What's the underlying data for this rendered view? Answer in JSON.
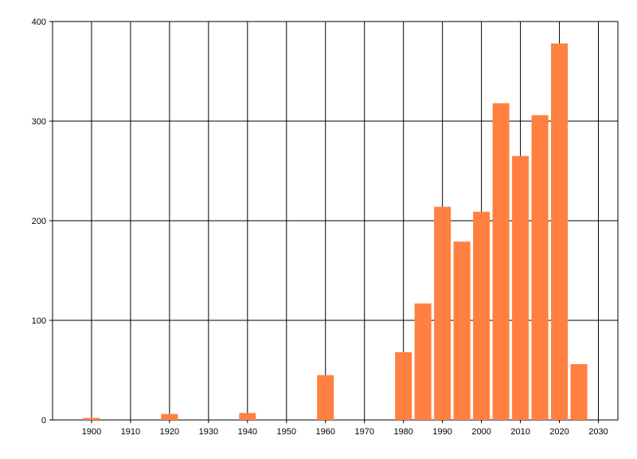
{
  "chart_data": {
    "type": "bar",
    "x": [
      1900,
      1920,
      1940,
      1960,
      1980,
      1985,
      1990,
      1995,
      2000,
      2005,
      2010,
      2015,
      2020,
      2025
    ],
    "values": [
      2,
      6,
      7,
      45,
      68,
      117,
      214,
      179,
      209,
      318,
      265,
      306,
      378,
      56
    ],
    "color": "#ff8040",
    "xlim": [
      1890,
      2035
    ],
    "xticks": [
      1900,
      1910,
      1920,
      1930,
      1940,
      1950,
      1960,
      1970,
      1980,
      1990,
      2000,
      2010,
      2020,
      2030
    ],
    "ylim": [
      0,
      400
    ],
    "yticks": [
      0,
      100,
      200,
      300,
      400
    ],
    "grid": true
  }
}
